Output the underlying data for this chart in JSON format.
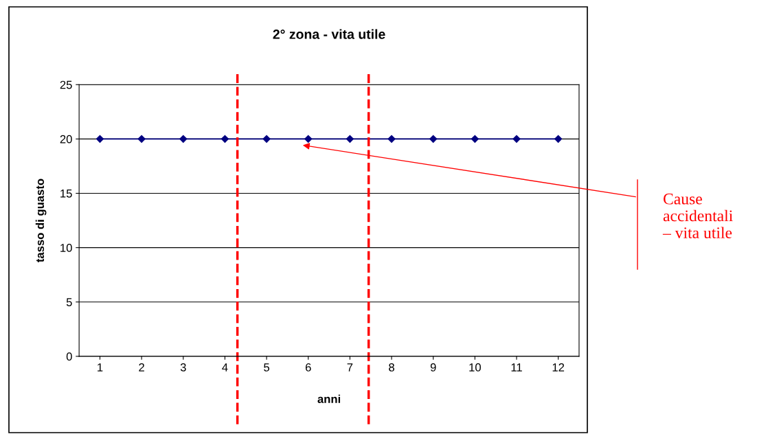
{
  "chart_data": {
    "type": "line",
    "title": "2° zona - vita utile",
    "xlabel": "anni",
    "ylabel": "tasso di guasto",
    "x": [
      1,
      2,
      3,
      4,
      5,
      6,
      7,
      8,
      9,
      10,
      11,
      12
    ],
    "series": [
      {
        "color": "#000080",
        "values": [
          20,
          20,
          20,
          20,
          20,
          20,
          20,
          20,
          20,
          20,
          20,
          20
        ]
      }
    ],
    "xlim": [
      0.5,
      12.5
    ],
    "xticks": [
      1,
      2,
      3,
      4,
      5,
      6,
      7,
      8,
      9,
      10,
      11,
      12
    ],
    "ylim": [
      0,
      25
    ],
    "yticks": [
      0,
      5,
      10,
      15,
      20,
      25
    ],
    "grid": "y",
    "marker": "diamond",
    "line_style": "solid",
    "ref_lines": [
      {
        "axis": "x",
        "value": 4.3,
        "color": "#ff0000",
        "line_style": "dashed"
      },
      {
        "axis": "x",
        "value": 7.45,
        "color": "#ff0000",
        "line_style": "dashed"
      }
    ],
    "annotations": [
      "Cause\naccidentali\n– vita utile"
    ]
  }
}
